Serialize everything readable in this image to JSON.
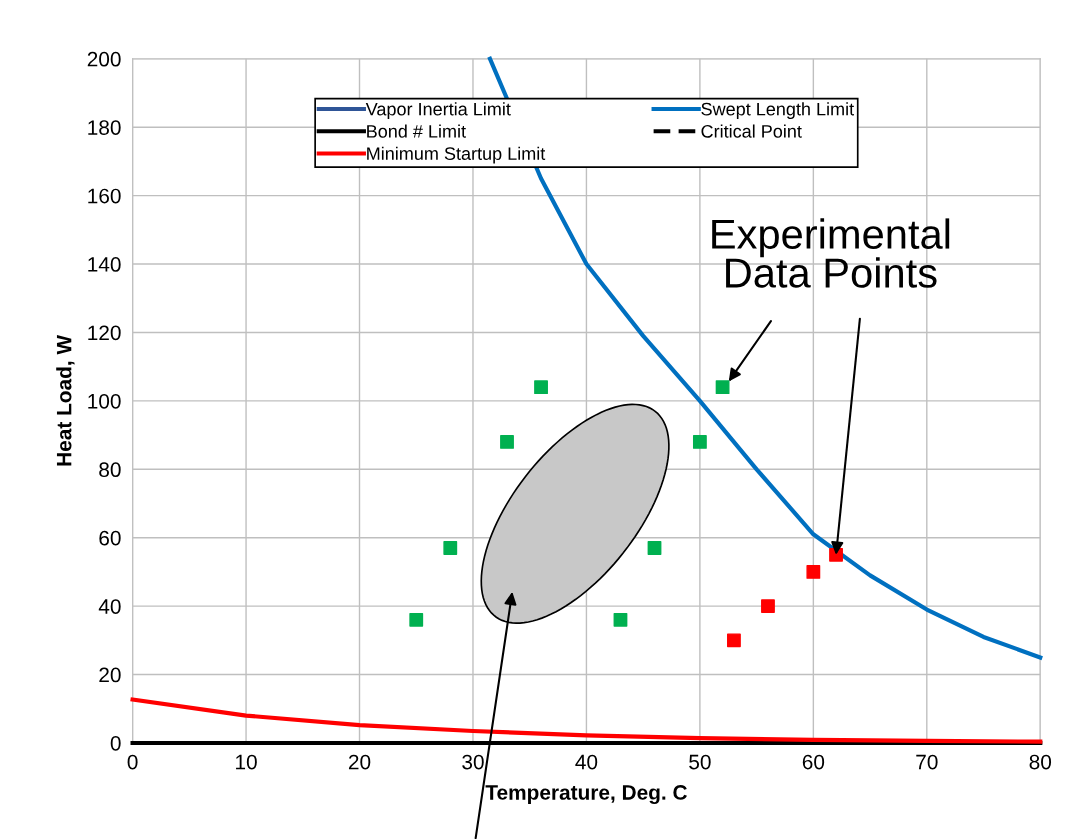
{
  "chart_data": {
    "type": "line",
    "xlabel": "Temperature, Deg. C",
    "ylabel": "Heat Load, W",
    "xlim": [
      0,
      80
    ],
    "xticks": [
      0,
      10,
      20,
      30,
      40,
      50,
      60,
      70,
      80
    ],
    "ylim": [
      0,
      200
    ],
    "yticks": [
      0,
      20,
      40,
      60,
      80,
      100,
      120,
      140,
      160,
      180,
      200
    ],
    "grid": true,
    "legend": "top",
    "marker": "none",
    "annotations": [
      {
        "text": "Experimental\nData Points",
        "x": 62,
        "y": 55
      }
    ],
    "series": [
      {
        "name": "Vapor Inertia Limit",
        "color": "#2f5597"
      },
      {
        "name": "Bond # Limit",
        "color": "#000000",
        "x": [
          0,
          80
        ],
        "values": [
          0,
          0
        ]
      },
      {
        "name": "Minimum Startup Limit",
        "color": "#ff0000",
        "x": [
          0,
          10,
          20,
          30,
          40,
          50,
          60,
          70,
          80
        ],
        "values": [
          12.7,
          8,
          5.2,
          3.5,
          2.2,
          1.4,
          0.9,
          0.6,
          0.4
        ]
      },
      {
        "name": "Swept Length Limit",
        "color": "#0070c0",
        "x": [
          31.5,
          36,
          40,
          45,
          50,
          55,
          60,
          65,
          70,
          75,
          80
        ],
        "values": [
          200,
          165,
          140,
          119,
          100,
          80,
          61,
          49,
          39,
          31,
          25
        ]
      },
      {
        "name": "Critical Point",
        "color": "#000000",
        "line_style": "dashed"
      },
      {
        "type": "scatter",
        "marker": "square",
        "color": "#00b050",
        "x": [
          25,
          28,
          33,
          36,
          43,
          46,
          50,
          52
        ],
        "values": [
          36,
          57,
          88,
          104,
          36,
          57,
          88,
          104
        ]
      },
      {
        "type": "scatter",
        "marker": "square",
        "color": "#ff0000",
        "x": [
          53,
          56,
          60,
          62
        ],
        "values": [
          30,
          40,
          50,
          55
        ]
      }
    ]
  }
}
